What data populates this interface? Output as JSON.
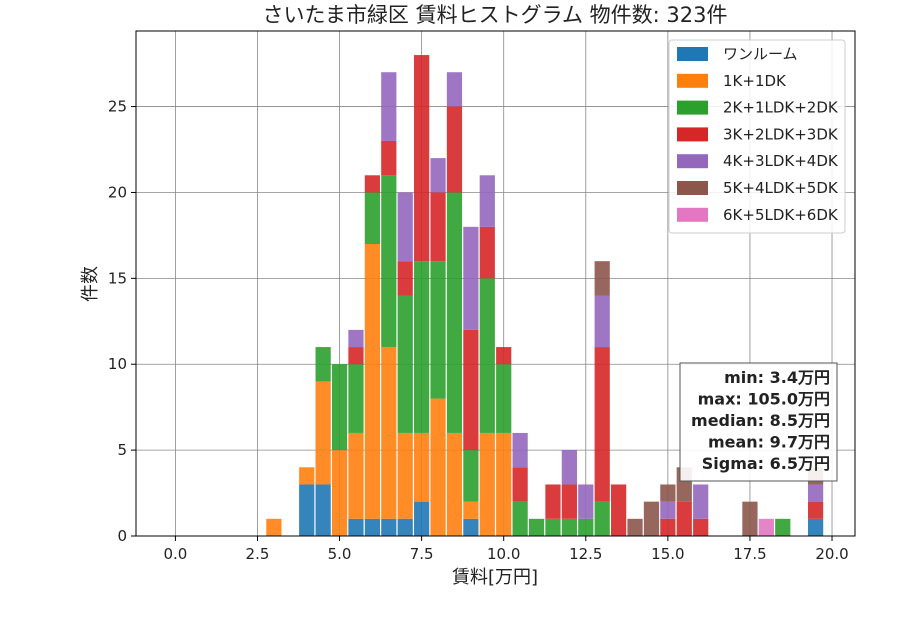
{
  "chart_data": {
    "type": "bar",
    "stacked": true,
    "title": "さいたま市緑区 賃料ヒストグラム 物件数: 323件",
    "xlabel": "賃料[万円]",
    "ylabel": "件数",
    "xlim": [
      -1.2,
      20.7
    ],
    "ylim": [
      0,
      29.4
    ],
    "xticks": [
      0.0,
      2.5,
      5.0,
      7.5,
      10.0,
      12.5,
      15.0,
      17.5,
      20.0
    ],
    "xtick_labels": [
      "0.0",
      "2.5",
      "5.0",
      "7.5",
      "10.0",
      "12.5",
      "15.0",
      "17.5",
      "20.0"
    ],
    "yticks": [
      0,
      5,
      10,
      15,
      20,
      25
    ],
    "ytick_labels": [
      "0",
      "5",
      "10",
      "15",
      "20",
      "25"
    ],
    "grid": true,
    "legend_position": "top-right",
    "bin_width": 0.5,
    "bin_centers": [
      3.0,
      4.0,
      4.5,
      5.0,
      5.5,
      6.0,
      6.5,
      7.0,
      7.5,
      8.0,
      8.5,
      9.0,
      9.5,
      10.0,
      10.5,
      11.0,
      11.5,
      12.0,
      12.5,
      13.0,
      13.5,
      14.0,
      14.5,
      15.0,
      15.5,
      16.0,
      16.5,
      17.0,
      17.5,
      18.0,
      18.5,
      19.5
    ],
    "series": [
      {
        "name": "ワンルーム",
        "color": "#1f77b4",
        "values": [
          0,
          3,
          3,
          0,
          1,
          1,
          1,
          1,
          2,
          0,
          0,
          1,
          0,
          0,
          0,
          0,
          0,
          0,
          0,
          0,
          0,
          0,
          0,
          0,
          0,
          0,
          0,
          0,
          0,
          0,
          0,
          1
        ]
      },
      {
        "name": "1K+1DK",
        "color": "#ff7f0e",
        "values": [
          1,
          1,
          6,
          5,
          5,
          16,
          10,
          5,
          4,
          8,
          6,
          1,
          6,
          6,
          0,
          0,
          0,
          0,
          0,
          0,
          0,
          0,
          0,
          0,
          0,
          0,
          0,
          0,
          0,
          0,
          0,
          0
        ]
      },
      {
        "name": "2K+1LDK+2DK",
        "color": "#2ca02c",
        "values": [
          0,
          0,
          2,
          5,
          4,
          3,
          10,
          8,
          10,
          8,
          14,
          3,
          9,
          4,
          2,
          1,
          1,
          1,
          1,
          2,
          0,
          0,
          0,
          0,
          0,
          0,
          0,
          0,
          0,
          0,
          1,
          0
        ]
      },
      {
        "name": "3K+2LDK+3DK",
        "color": "#d62728",
        "values": [
          0,
          0,
          0,
          0,
          1,
          1,
          2,
          2,
          12,
          4,
          5,
          7,
          3,
          1,
          2,
          0,
          2,
          2,
          0,
          9,
          3,
          0,
          0,
          1,
          2,
          1,
          0,
          0,
          0,
          0,
          0,
          1
        ]
      },
      {
        "name": "4K+3LDK+4DK",
        "color": "#9467bd",
        "values": [
          0,
          0,
          0,
          0,
          1,
          0,
          4,
          4,
          0,
          2,
          2,
          6,
          3,
          0,
          2,
          0,
          0,
          2,
          2,
          3,
          0,
          0,
          0,
          1,
          0,
          2,
          0,
          0,
          0,
          0,
          0,
          1
        ]
      },
      {
        "name": "5K+4LDK+5DK",
        "color": "#8c564b",
        "values": [
          0,
          0,
          0,
          0,
          0,
          0,
          0,
          0,
          0,
          0,
          0,
          0,
          0,
          0,
          0,
          0,
          0,
          0,
          0,
          2,
          0,
          1,
          2,
          1,
          2,
          0,
          0,
          0,
          2,
          0,
          0,
          1
        ]
      },
      {
        "name": "6K+5LDK+6DK",
        "color": "#e377c2",
        "values": [
          0,
          0,
          0,
          0,
          0,
          0,
          0,
          0,
          0,
          0,
          0,
          0,
          0,
          0,
          0,
          0,
          0,
          0,
          0,
          0,
          0,
          0,
          0,
          0,
          0,
          0,
          0,
          0,
          0,
          1,
          0,
          0
        ]
      }
    ],
    "stats": [
      "min: 3.4万円",
      "max: 105.0万円",
      "median: 8.5万円",
      "mean: 9.7万円",
      "Sigma: 6.5万円"
    ]
  }
}
